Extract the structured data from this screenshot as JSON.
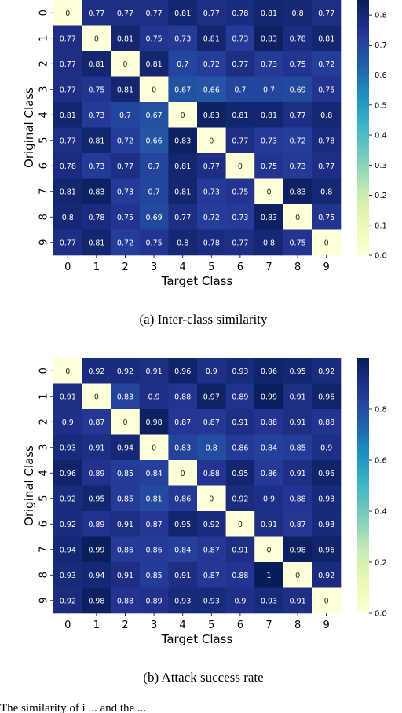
{
  "captions": {
    "a": "(a) Inter-class similarity",
    "b": "(b) Attack success rate",
    "figure_text": "The similarity of i ... and the ... "
  },
  "chart_data": [
    {
      "type": "heatmap",
      "title": "",
      "xlabel": "Target Class",
      "ylabel": "Original Class",
      "x_categories": [
        "0",
        "1",
        "2",
        "3",
        "4",
        "5",
        "6",
        "7",
        "8",
        "9"
      ],
      "y_categories": [
        "0",
        "1",
        "2",
        "3",
        "4",
        "5",
        "6",
        "7",
        "8",
        "9"
      ],
      "colormap": "YlGnBu",
      "colorbar_range": [
        0.0,
        0.85
      ],
      "colorbar_ticks": [
        0.0,
        0.1,
        0.2,
        0.3,
        0.4,
        0.5,
        0.6,
        0.7,
        0.8
      ],
      "values": [
        [
          0,
          0.77,
          0.77,
          0.77,
          0.81,
          0.77,
          0.78,
          0.81,
          0.8,
          0.77
        ],
        [
          0.77,
          0,
          0.81,
          0.75,
          0.73,
          0.81,
          0.73,
          0.83,
          0.78,
          0.81
        ],
        [
          0.77,
          0.81,
          0,
          0.81,
          0.7,
          0.72,
          0.77,
          0.73,
          0.75,
          0.72
        ],
        [
          0.77,
          0.75,
          0.81,
          0,
          0.67,
          0.66,
          0.7,
          0.7,
          0.69,
          0.75
        ],
        [
          0.81,
          0.73,
          0.7,
          0.67,
          0,
          0.83,
          0.81,
          0.81,
          0.77,
          0.8
        ],
        [
          0.77,
          0.81,
          0.72,
          0.66,
          0.83,
          0,
          0.77,
          0.73,
          0.72,
          0.78
        ],
        [
          0.78,
          0.73,
          0.77,
          0.7,
          0.81,
          0.77,
          0,
          0.75,
          0.73,
          0.77
        ],
        [
          0.81,
          0.83,
          0.73,
          0.7,
          0.81,
          0.73,
          0.75,
          0,
          0.83,
          0.8
        ],
        [
          0.8,
          0.78,
          0.75,
          0.69,
          0.77,
          0.72,
          0.73,
          0.83,
          0,
          0.75
        ],
        [
          0.77,
          0.81,
          0.72,
          0.75,
          0.8,
          0.78,
          0.77,
          0.8,
          0.75,
          0
        ]
      ]
    },
    {
      "type": "heatmap",
      "title": "",
      "xlabel": "Target Class",
      "ylabel": "Original Class",
      "x_categories": [
        "0",
        "1",
        "2",
        "3",
        "4",
        "5",
        "6",
        "7",
        "8",
        "9"
      ],
      "y_categories": [
        "0",
        "1",
        "2",
        "3",
        "4",
        "5",
        "6",
        "7",
        "8",
        "9"
      ],
      "colormap": "YlGnBu",
      "colorbar_range": [
        0.0,
        1.0
      ],
      "colorbar_ticks": [
        0.0,
        0.2,
        0.4,
        0.6,
        0.8
      ],
      "values": [
        [
          0,
          0.92,
          0.92,
          0.91,
          0.96,
          0.9,
          0.93,
          0.96,
          0.95,
          0.92
        ],
        [
          0.91,
          0,
          0.83,
          0.9,
          0.88,
          0.97,
          0.89,
          0.99,
          0.91,
          0.96
        ],
        [
          0.9,
          0.87,
          0,
          0.98,
          0.87,
          0.87,
          0.91,
          0.88,
          0.91,
          0.88
        ],
        [
          0.93,
          0.91,
          0.94,
          0,
          0.83,
          0.8,
          0.86,
          0.84,
          0.85,
          0.9
        ],
        [
          0.96,
          0.89,
          0.85,
          0.84,
          0,
          0.88,
          0.95,
          0.86,
          0.91,
          0.96
        ],
        [
          0.92,
          0.95,
          0.85,
          0.81,
          0.86,
          0,
          0.92,
          0.9,
          0.88,
          0.93
        ],
        [
          0.92,
          0.89,
          0.91,
          0.87,
          0.95,
          0.92,
          0,
          0.91,
          0.87,
          0.93
        ],
        [
          0.94,
          0.99,
          0.86,
          0.86,
          0.84,
          0.87,
          0.91,
          0,
          0.98,
          0.96
        ],
        [
          0.93,
          0.94,
          0.91,
          0.85,
          0.91,
          0.87,
          0.88,
          1,
          0,
          0.92
        ],
        [
          0.92,
          0.98,
          0.88,
          0.89,
          0.93,
          0.93,
          0.9,
          0.93,
          0.91,
          0
        ]
      ]
    }
  ]
}
